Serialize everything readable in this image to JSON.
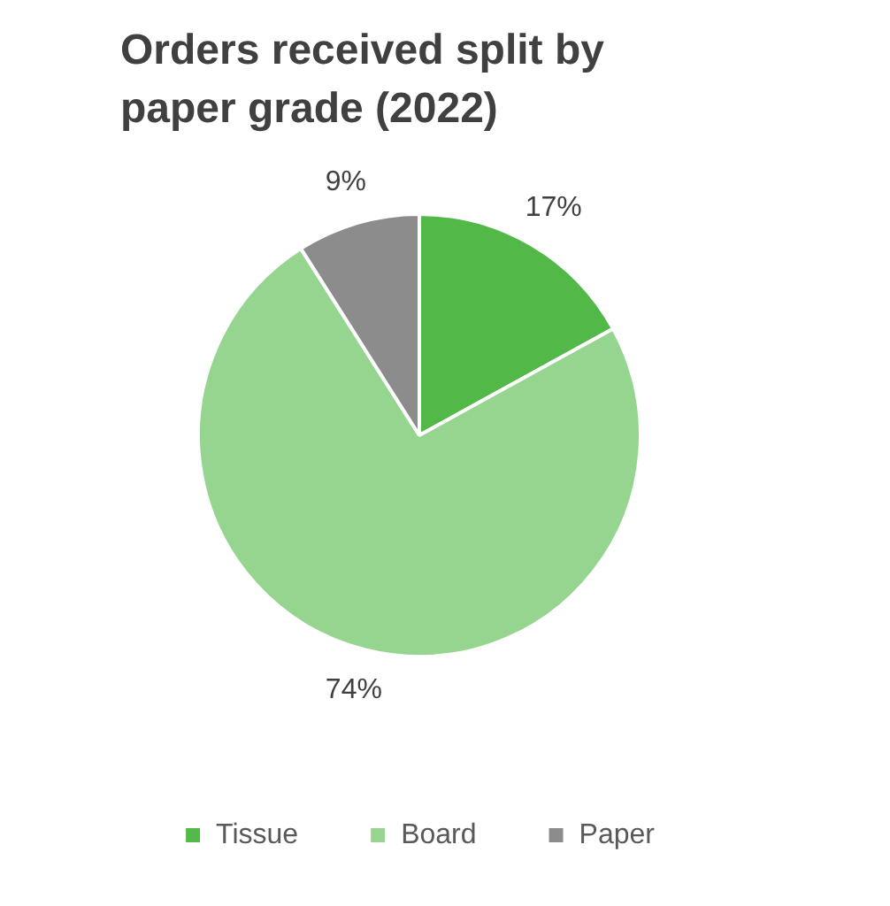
{
  "chart_data": {
    "type": "pie",
    "title": "Orders received split by paper grade (2022)",
    "categories": [
      "Tissue",
      "Board",
      "Paper"
    ],
    "values": [
      17,
      74,
      9
    ],
    "colors": [
      "#52b848",
      "#96d590",
      "#8c8c8c"
    ],
    "value_labels": [
      "17%",
      "74%",
      "9%"
    ],
    "legend": "bottom"
  }
}
